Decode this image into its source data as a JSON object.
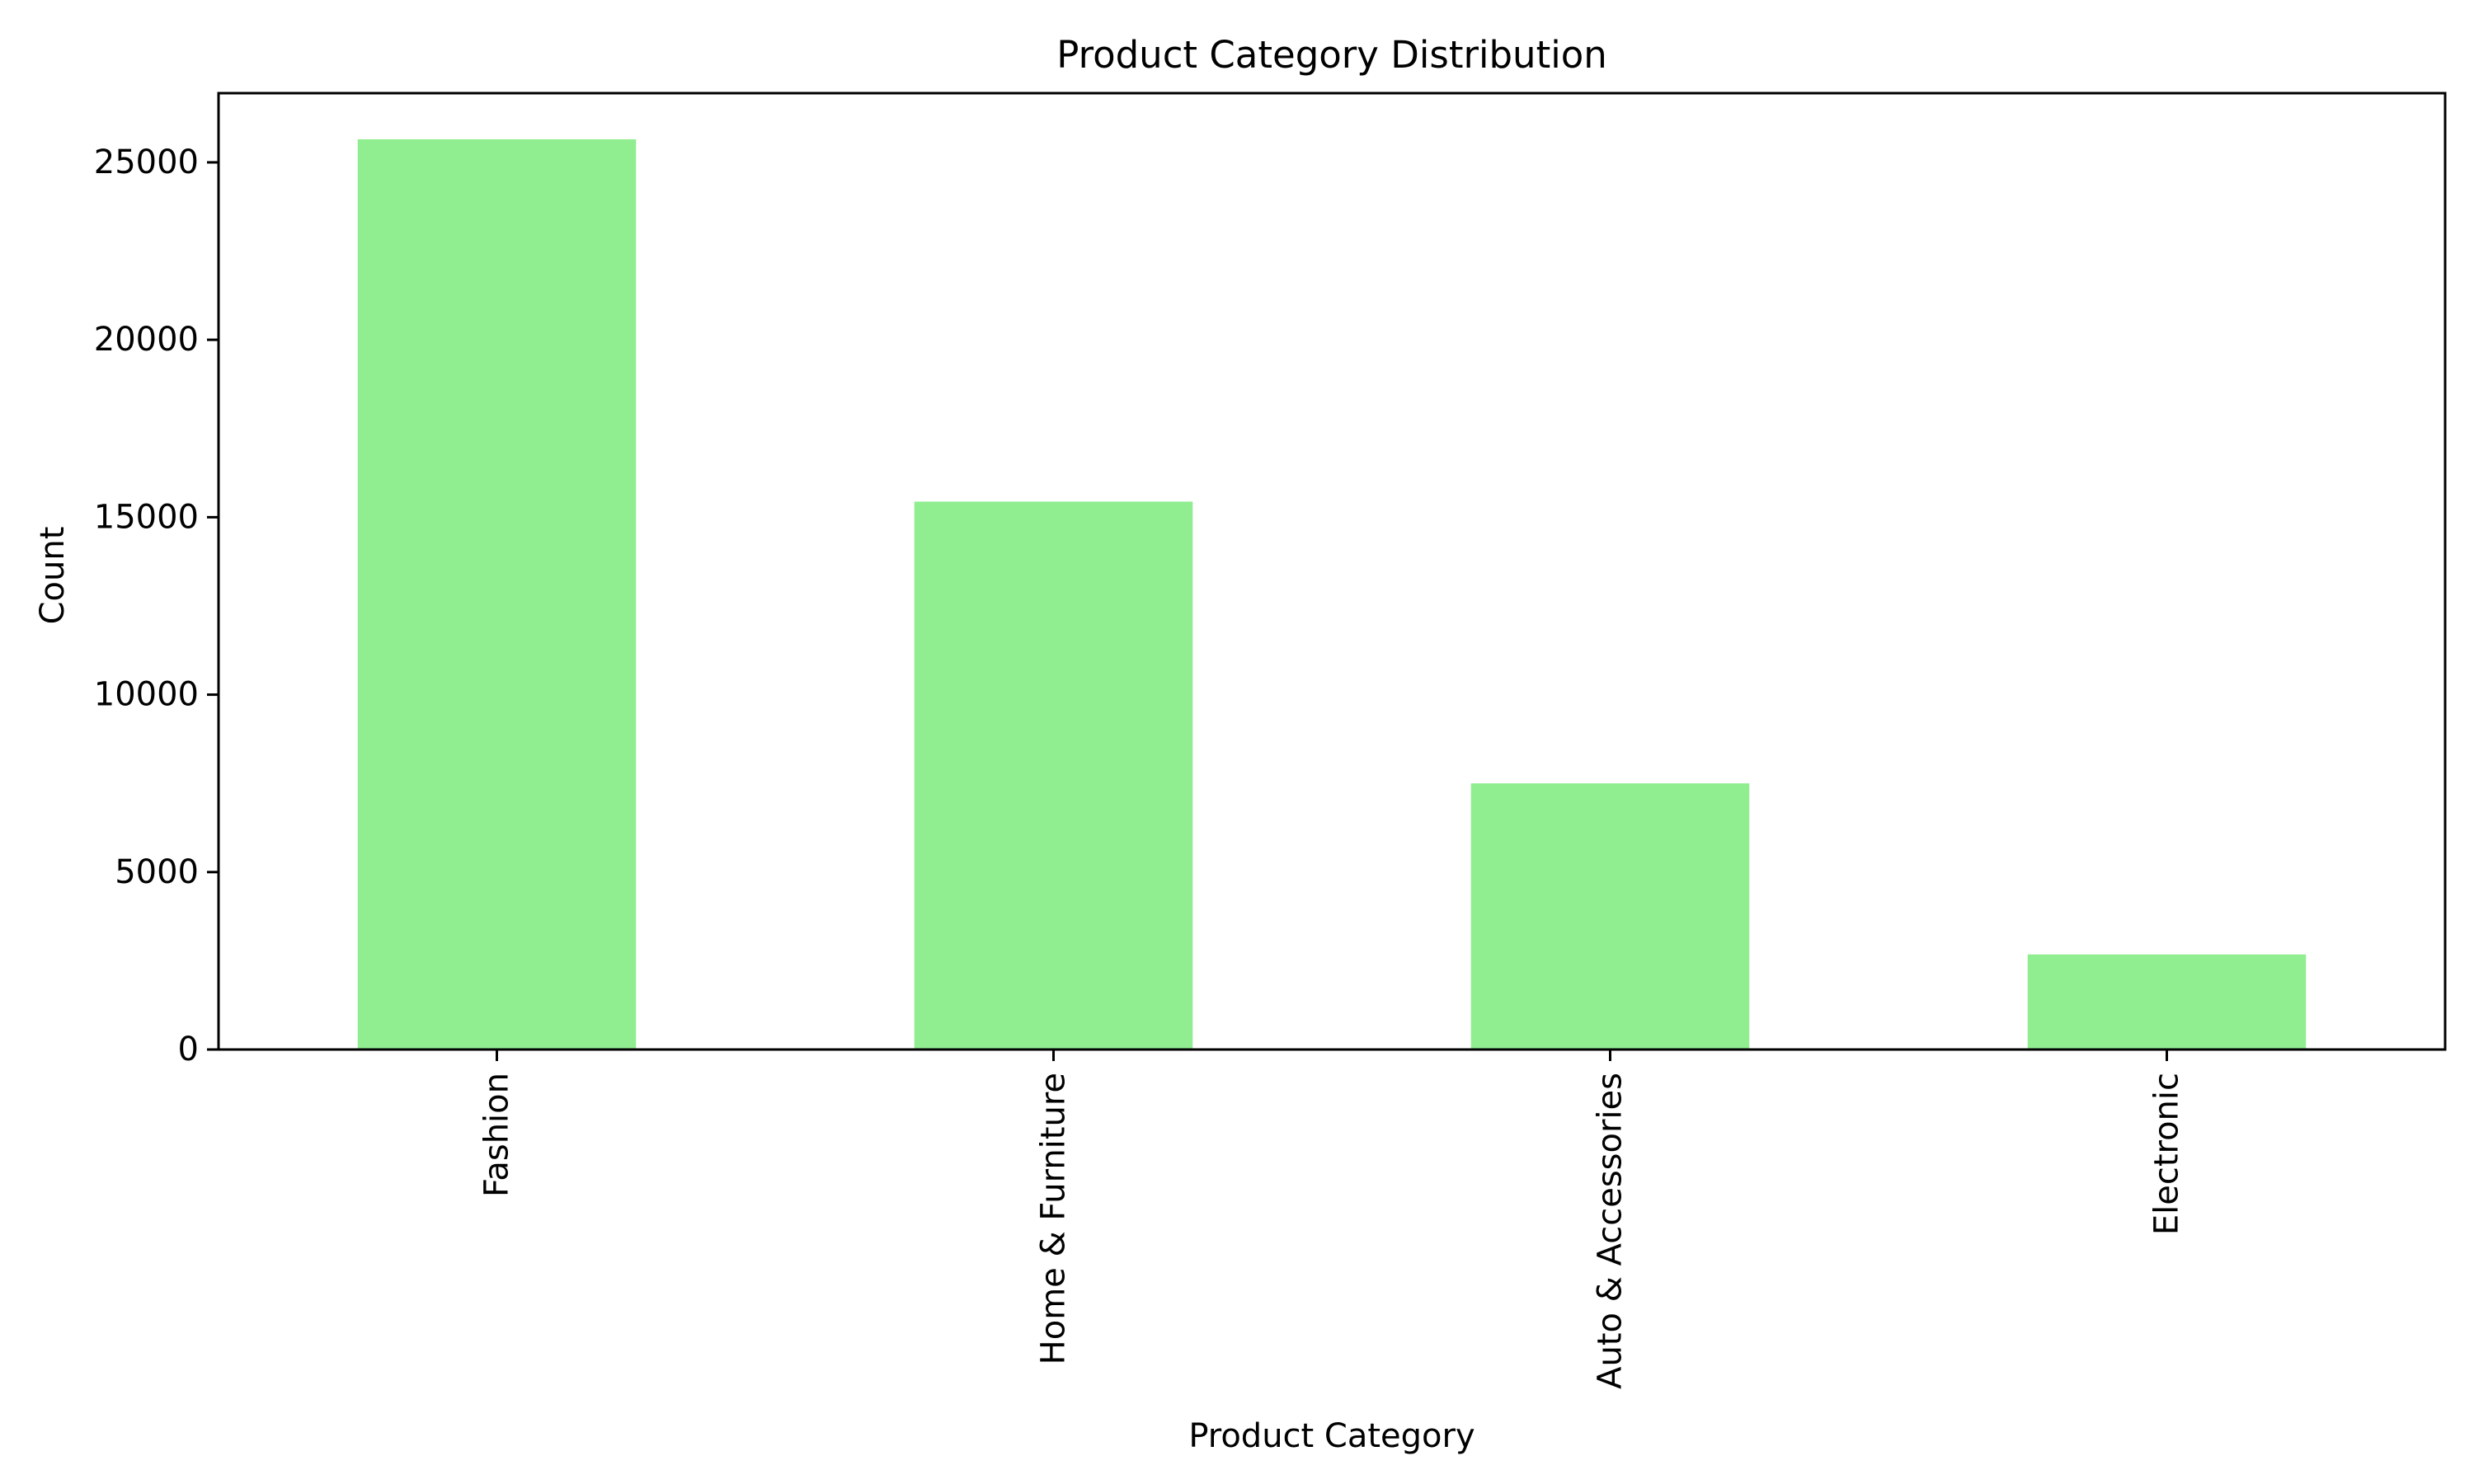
{
  "chart_data": {
    "type": "bar",
    "title": "Product Category Distribution",
    "xlabel": "Product Category",
    "ylabel": "Count",
    "categories": [
      "Fashion",
      "Home & Furniture",
      "Auto & Accessories",
      "Electronic"
    ],
    "values": [
      25650,
      15440,
      7500,
      2680
    ],
    "ylim": [
      0,
      26950
    ],
    "yticks": [
      0,
      5000,
      10000,
      15000,
      20000,
      25000
    ],
    "ytick_labels": [
      "0",
      "5000",
      "10000",
      "15000",
      "20000",
      "25000"
    ],
    "grid": false,
    "legend": "none",
    "bar_color": "#90ee90",
    "axis_color": "#000000",
    "text_color": "#000000"
  }
}
